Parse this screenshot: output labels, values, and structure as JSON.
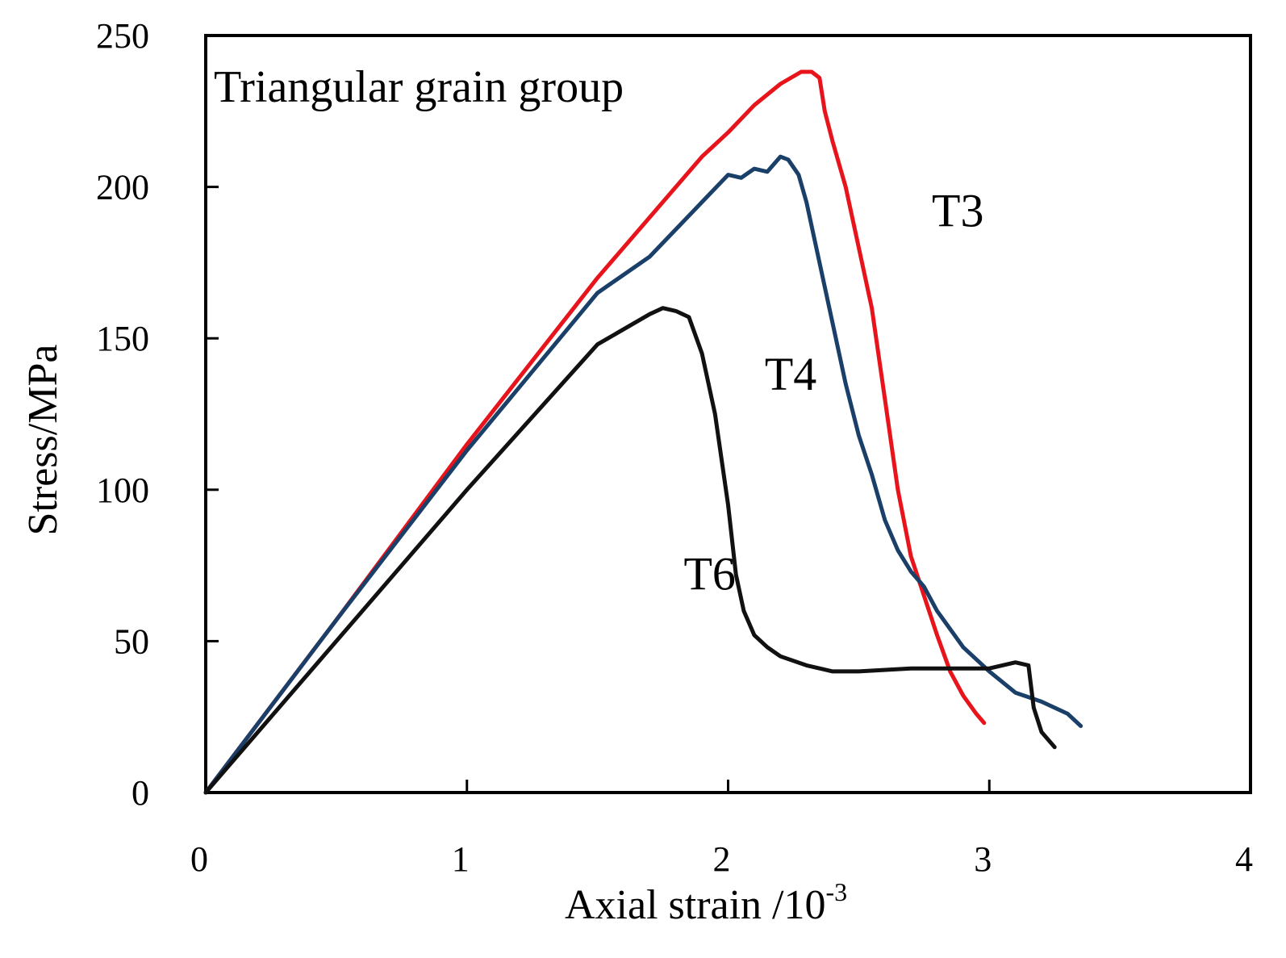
{
  "chart_data": {
    "type": "line",
    "title": "",
    "annotation": "Triangular grain group",
    "xlabel": "Axial strain /10",
    "xlabel_sup": "-3",
    "ylabel": "Stress/MPa",
    "xlim": [
      0,
      4
    ],
    "ylim": [
      0,
      250
    ],
    "x_ticks": [
      0,
      1,
      2,
      3,
      4
    ],
    "y_ticks": [
      0,
      50,
      100,
      150,
      200,
      250
    ],
    "x_tick_labels": [
      "0",
      "1",
      "2",
      "3",
      "4"
    ],
    "y_tick_labels": [
      "0",
      "50",
      "100",
      "150",
      "200",
      "250"
    ],
    "grid": false,
    "legend": "inline labels",
    "series": [
      {
        "name": "T3",
        "color": "#e8141c",
        "label_at": [
          2.78,
          187
        ],
        "x": [
          0,
          0.5,
          1.0,
          1.5,
          1.7,
          1.9,
          2.0,
          2.1,
          2.2,
          2.28,
          2.32,
          2.35,
          2.37,
          2.4,
          2.45,
          2.5,
          2.55,
          2.6,
          2.65,
          2.7,
          2.75,
          2.8,
          2.85,
          2.9,
          2.95,
          2.98
        ],
        "y": [
          0,
          57,
          115,
          170,
          190,
          210,
          218,
          227,
          234,
          238,
          238,
          236,
          225,
          215,
          200,
          180,
          160,
          130,
          100,
          78,
          65,
          52,
          40,
          32,
          26,
          23
        ]
      },
      {
        "name": "T4",
        "color": "#1a3f68",
        "label_at": [
          2.14,
          133
        ],
        "x": [
          0,
          0.5,
          1.0,
          1.5,
          1.7,
          1.9,
          2.0,
          2.05,
          2.1,
          2.15,
          2.2,
          2.23,
          2.27,
          2.3,
          2.35,
          2.4,
          2.45,
          2.5,
          2.55,
          2.6,
          2.65,
          2.7,
          2.75,
          2.8,
          2.9,
          3.0,
          3.1,
          3.2,
          3.3,
          3.35
        ],
        "y": [
          0,
          57,
          113,
          165,
          177,
          195,
          204,
          203,
          206,
          205,
          210,
          209,
          204,
          195,
          175,
          155,
          135,
          118,
          105,
          90,
          80,
          73,
          68,
          60,
          48,
          40,
          33,
          30,
          26,
          22
        ]
      },
      {
        "name": "T6",
        "color": "#111111",
        "label_at": [
          1.83,
          67
        ],
        "x": [
          0,
          0.5,
          1.0,
          1.5,
          1.7,
          1.75,
          1.8,
          1.85,
          1.9,
          1.95,
          2.0,
          2.03,
          2.06,
          2.1,
          2.15,
          2.2,
          2.3,
          2.4,
          2.5,
          2.7,
          2.9,
          3.0,
          3.1,
          3.15,
          3.17,
          3.2,
          3.25
        ],
        "y": [
          0,
          50,
          100,
          148,
          158,
          160,
          159,
          157,
          145,
          125,
          95,
          72,
          60,
          52,
          48,
          45,
          42,
          40,
          40,
          41,
          41,
          41,
          43,
          42,
          28,
          20,
          15
        ]
      }
    ]
  }
}
